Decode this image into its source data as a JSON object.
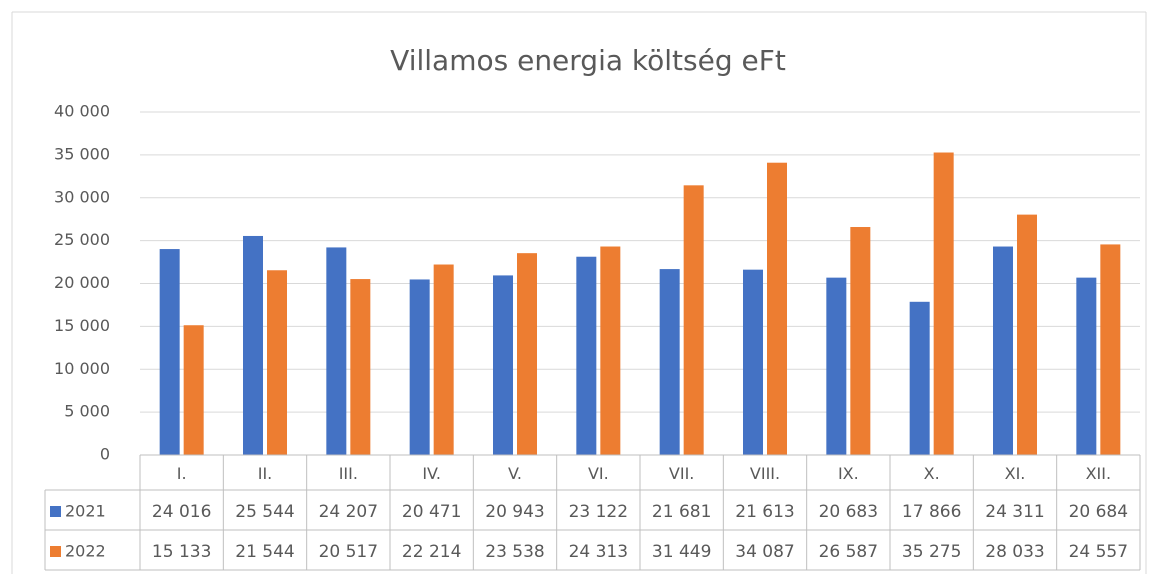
{
  "chart_data": {
    "type": "bar",
    "title": "Villamos energia költség eFt",
    "categories": [
      "I.",
      "II.",
      "III.",
      "IV.",
      "V.",
      "VI.",
      "VII.",
      "VIII.",
      "IX.",
      "X.",
      "XI.",
      "XII."
    ],
    "series": [
      {
        "name": "2021",
        "color": "#4472c4",
        "values": [
          24016,
          25544,
          24207,
          20471,
          20943,
          23122,
          21681,
          21613,
          20683,
          17866,
          24311,
          20684
        ],
        "value_labels": [
          "24 016",
          "25 544",
          "24 207",
          "20 471",
          "20 943",
          "23 122",
          "21 681",
          "21 613",
          "20 683",
          "17 866",
          "24 311",
          "20 684"
        ]
      },
      {
        "name": "2022",
        "color": "#ed7d31",
        "values": [
          15133,
          21544,
          20517,
          22214,
          23538,
          24313,
          31449,
          34087,
          26587,
          35275,
          28033,
          24557
        ],
        "value_labels": [
          "15 133",
          "21 544",
          "20 517",
          "22 214",
          "23 538",
          "24 313",
          "31 449",
          "34 087",
          "26 587",
          "35 275",
          "28 033",
          "24 557"
        ]
      }
    ],
    "ylim": [
      0,
      40000
    ],
    "yticks": [
      0,
      {
        "value": 5000,
        "label": "5 000"
      },
      {
        "value": 10000,
        "label": "10 000"
      },
      {
        "value": 15000,
        "label": "15 000"
      },
      {
        "value": 20000,
        "label": "20 000"
      },
      {
        "value": 25000,
        "label": "25 000"
      },
      {
        "value": 30000,
        "label": "30 000"
      },
      {
        "value": 35000,
        "label": "35 000"
      },
      {
        "value": 40000,
        "label": "40 000"
      }
    ],
    "grid": true
  }
}
